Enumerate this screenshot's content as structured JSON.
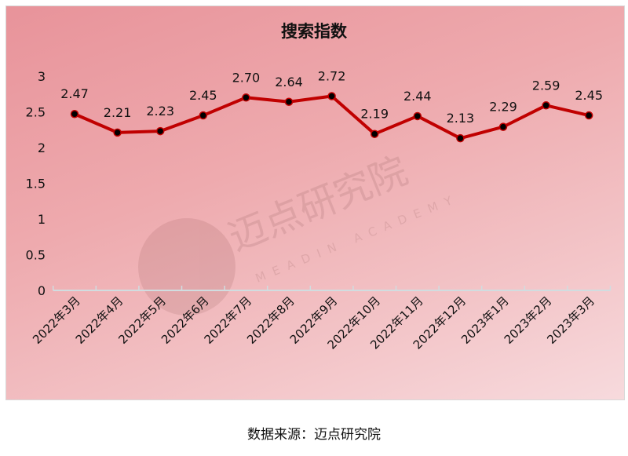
{
  "chart_data": {
    "type": "line",
    "title": "搜索指数",
    "categories": [
      "2022年3月",
      "2022年4月",
      "2022年5月",
      "2022年6月",
      "2022年7月",
      "2022年8月",
      "2022年9月",
      "2022年10月",
      "2022年11月",
      "2022年12月",
      "2023年1月",
      "2023年2月",
      "2023年3月"
    ],
    "values": [
      2.47,
      2.21,
      2.23,
      2.45,
      2.7,
      2.64,
      2.72,
      2.19,
      2.44,
      2.13,
      2.29,
      2.59,
      2.45
    ],
    "data_labels": [
      "2.47",
      "2.21",
      "2.23",
      "2.45",
      "2.70",
      "2.64",
      "2.72",
      "2.19",
      "2.44",
      "2.13",
      "2.29",
      "2.59",
      "2.45"
    ],
    "ylim": [
      0,
      3
    ],
    "yticks": [
      "0",
      "0.5",
      "1",
      "1.5",
      "2",
      "2.5",
      "3"
    ],
    "grid": false,
    "legend": "none",
    "colors": {
      "line": "#c00000",
      "marker": "#000000",
      "axis": "#d0dde0"
    }
  },
  "watermark": {
    "name": "迈点研究院",
    "subtitle": "MEADIN ACADEMY"
  },
  "source": "数据来源：迈点研究院"
}
